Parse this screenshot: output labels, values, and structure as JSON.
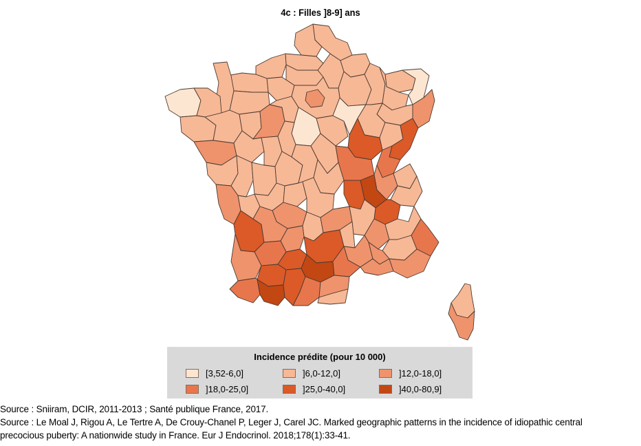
{
  "title": "4c : Filles ]8-9] ans",
  "legend": {
    "title": "Incidence prédite (pour 10 000)",
    "classes": [
      {
        "label": "[3,52-6,0]",
        "color": "#fde6d1"
      },
      {
        "label": "]6,0-12,0]",
        "color": "#f7b896"
      },
      {
        "label": "]12,0-18,0]",
        "color": "#ef936d"
      },
      {
        "label": "]18,0-25,0]",
        "color": "#e8764d"
      },
      {
        "label": "]25,0-40,0]",
        "color": "#db5a27"
      },
      {
        "label": "]40,0-80,9]",
        "color": "#c24713"
      }
    ]
  },
  "sources": [
    "Source : Sniiram, DCIR, 2011-2013 ; Santé publique France, 2017.",
    "Source : Le Moal J, Rigou A, Le Tertre A, De Crouy-Chanel P, Leger J, Carel JC. Marked geographic patterns in the incidence of idiopathic central",
    "precocious puberty: A nationwide study in France. Eur J Endocrinol. 2018;178(1):33-41."
  ],
  "map": {
    "country": "France",
    "regions": [
      {
        "name": "nord",
        "class": 1
      },
      {
        "name": "pas-de-calais",
        "class": 1
      },
      {
        "name": "somme",
        "class": 1
      },
      {
        "name": "aisne",
        "class": 1
      },
      {
        "name": "ardennes",
        "class": 1
      },
      {
        "name": "seine-maritime",
        "class": 1
      },
      {
        "name": "oise",
        "class": 1
      },
      {
        "name": "eure",
        "class": 1
      },
      {
        "name": "calvados",
        "class": 1
      },
      {
        "name": "manche",
        "class": 1
      },
      {
        "name": "marne",
        "class": 1
      },
      {
        "name": "meuse",
        "class": 1
      },
      {
        "name": "moselle",
        "class": 1
      },
      {
        "name": "bas-rhin",
        "class": 0
      },
      {
        "name": "haut-rhin",
        "class": 2
      },
      {
        "name": "meurthe-et-moselle",
        "class": 1
      },
      {
        "name": "vosges",
        "class": 1
      },
      {
        "name": "finistere",
        "class": 0
      },
      {
        "name": "cotes-d-armor",
        "class": 1
      },
      {
        "name": "morbihan",
        "class": 1
      },
      {
        "name": "ille-et-vilaine",
        "class": 1
      },
      {
        "name": "orne",
        "class": 1
      },
      {
        "name": "mayenne",
        "class": 1
      },
      {
        "name": "sarthe",
        "class": 2
      },
      {
        "name": "eure-et-loir",
        "class": 1
      },
      {
        "name": "ile-de-france",
        "class": 1
      },
      {
        "name": "paris-center",
        "class": 2
      },
      {
        "name": "loiret",
        "class": 0
      },
      {
        "name": "yonne",
        "class": 1
      },
      {
        "name": "aube",
        "class": 0
      },
      {
        "name": "haute-marne",
        "class": 1
      },
      {
        "name": "cote-d-or",
        "class": 4
      },
      {
        "name": "haute-saone",
        "class": 1
      },
      {
        "name": "doubs",
        "class": 4
      },
      {
        "name": "jura",
        "class": 3
      },
      {
        "name": "loire-atlantique",
        "class": 2
      },
      {
        "name": "maine-et-loire",
        "class": 1
      },
      {
        "name": "indre-et-loire",
        "class": 1
      },
      {
        "name": "loir-et-cher",
        "class": 1
      },
      {
        "name": "vendee",
        "class": 1
      },
      {
        "name": "deux-sevres",
        "class": 1
      },
      {
        "name": "vienne",
        "class": 1
      },
      {
        "name": "indre",
        "class": 1
      },
      {
        "name": "cher",
        "class": 1
      },
      {
        "name": "nievre",
        "class": 1
      },
      {
        "name": "saone-et-loire",
        "class": 3
      },
      {
        "name": "allier",
        "class": 1
      },
      {
        "name": "ain",
        "class": 2
      },
      {
        "name": "haute-savoie",
        "class": 1
      },
      {
        "name": "savoie",
        "class": 1
      },
      {
        "name": "rhone",
        "class": 5
      },
      {
        "name": "loire",
        "class": 4
      },
      {
        "name": "isere",
        "class": 4
      },
      {
        "name": "charente-maritime",
        "class": 2
      },
      {
        "name": "charente",
        "class": 1
      },
      {
        "name": "haute-vienne",
        "class": 1
      },
      {
        "name": "creuse",
        "class": 1
      },
      {
        "name": "puy-de-dome",
        "class": 1
      },
      {
        "name": "correze",
        "class": 2
      },
      {
        "name": "cantal",
        "class": 1
      },
      {
        "name": "haute-loire",
        "class": 2
      },
      {
        "name": "ardeche",
        "class": 1
      },
      {
        "name": "drome",
        "class": 2
      },
      {
        "name": "hautes-alpes",
        "class": 1
      },
      {
        "name": "alpes-de-haute-provence",
        "class": 1
      },
      {
        "name": "alpes-maritimes",
        "class": 3
      },
      {
        "name": "gironde",
        "class": 4
      },
      {
        "name": "dordogne",
        "class": 2
      },
      {
        "name": "lot",
        "class": 2
      },
      {
        "name": "lot-et-garonne",
        "class": 3
      },
      {
        "name": "landes",
        "class": 2
      },
      {
        "name": "aveyron",
        "class": 4
      },
      {
        "name": "lozere",
        "class": 1
      },
      {
        "name": "gard",
        "class": 2
      },
      {
        "name": "vaucluse",
        "class": 2
      },
      {
        "name": "bouches-du-rhone",
        "class": 2
      },
      {
        "name": "var",
        "class": 2
      },
      {
        "name": "tarn-et-garonne",
        "class": 4
      },
      {
        "name": "tarn",
        "class": 5
      },
      {
        "name": "gers",
        "class": 4
      },
      {
        "name": "haute-garonne",
        "class": 4
      },
      {
        "name": "herault",
        "class": 3
      },
      {
        "name": "pyrenees-atlantiques",
        "class": 3
      },
      {
        "name": "hautes-pyrenees",
        "class": 5
      },
      {
        "name": "ariege",
        "class": 3
      },
      {
        "name": "aude",
        "class": 2
      },
      {
        "name": "pyrenees-orientales",
        "class": 1
      },
      {
        "name": "haute-corse",
        "class": 1
      },
      {
        "name": "corse-du-sud",
        "class": 2
      }
    ]
  }
}
